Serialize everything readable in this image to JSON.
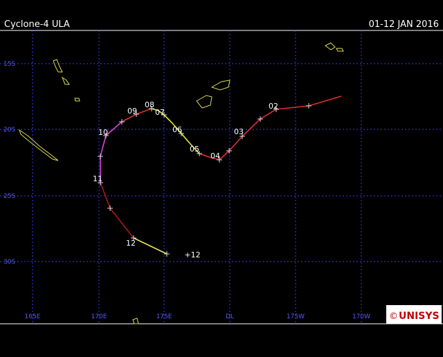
{
  "header": {
    "title": "Cyclone-4 ULA",
    "date": "01-12 JAN 2016"
  },
  "lat_labels": [
    "15S",
    "20S",
    "25S",
    "30S"
  ],
  "lon_labels": [
    "165E",
    "170E",
    "175E",
    "DL",
    "175W",
    "170W"
  ],
  "day_labels": [
    "02",
    "03",
    "04",
    "05",
    "06",
    "07",
    "08",
    "09",
    "10",
    "11",
    "12",
    "+12"
  ],
  "logo": {
    "symbol": "©",
    "name": "UNISYS"
  }
}
